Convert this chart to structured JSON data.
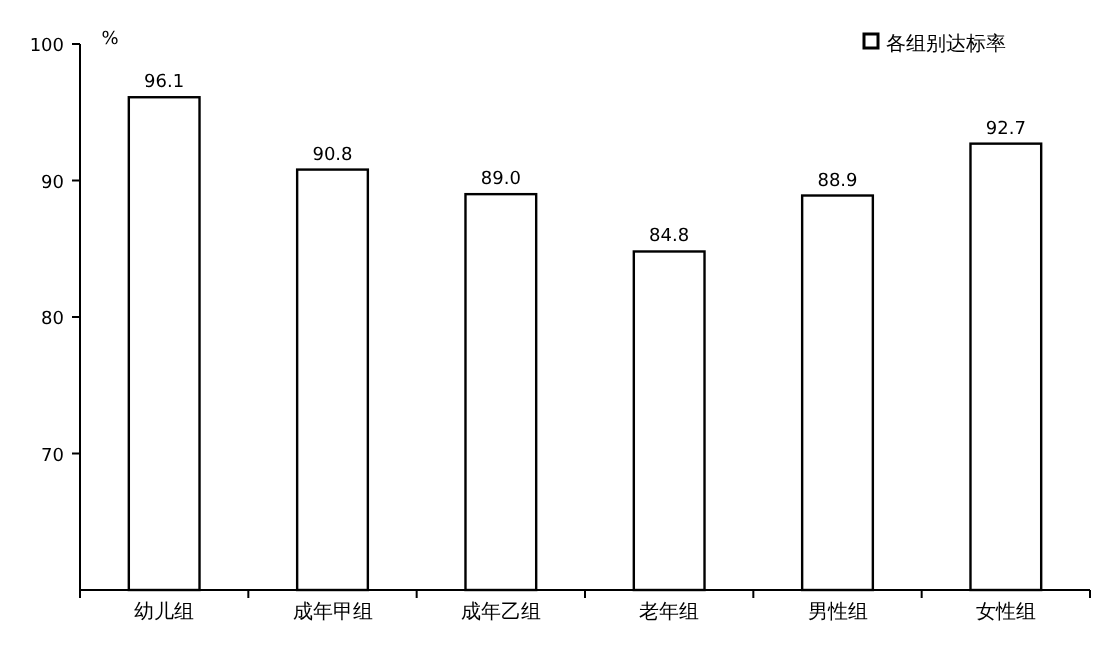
{
  "chart_data": {
    "type": "bar",
    "ylabel": "%",
    "categories": [
      "幼儿组",
      "成年甲组",
      "成年乙组",
      "老年组",
      "男性组",
      "女性组"
    ],
    "series": [
      {
        "name": "各组别达标率",
        "color": "#ffffff",
        "values": [
          96.1,
          90.8,
          89.0,
          84.8,
          88.9,
          92.7
        ]
      }
    ],
    "value_labels": [
      "96.1",
      "90.8",
      "89.0",
      "84.8",
      "88.9",
      "92.7"
    ],
    "ylim": [
      60,
      100
    ],
    "yticks": [
      70,
      80,
      90,
      100
    ],
    "legend": "top right",
    "grid": false
  }
}
